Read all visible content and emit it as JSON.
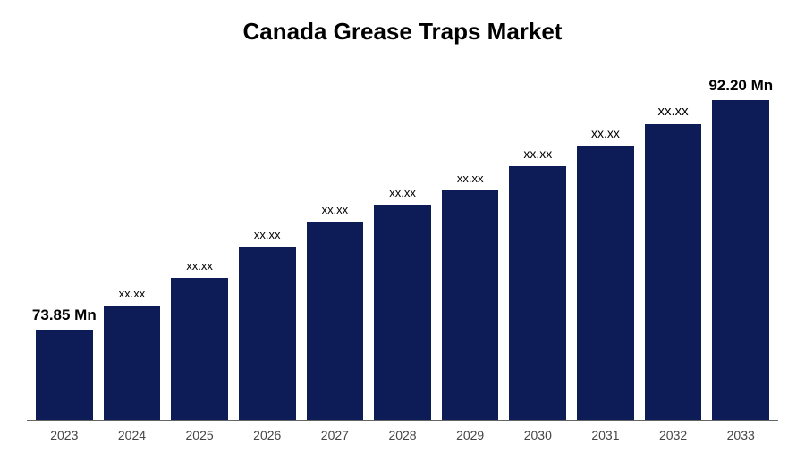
{
  "chart": {
    "type": "bar",
    "title": "Canada Grease Traps Market",
    "title_fontsize": 26,
    "title_fontweight": 700,
    "title_color": "#000000",
    "background_color": "#ffffff",
    "bar_color": "#0d1c56",
    "axis_color": "#666666",
    "x_tick_color": "#444444",
    "x_tick_fontsize": 14,
    "categories": [
      "2023",
      "2024",
      "2025",
      "2026",
      "2027",
      "2028",
      "2029",
      "2030",
      "2031",
      "2032",
      "2033"
    ],
    "values_relative_height_pct": [
      26,
      33,
      41,
      50,
      57,
      62,
      66,
      73,
      79,
      85,
      92
    ],
    "bar_labels": [
      "73.85 Mn",
      "xx.xx",
      "xx.xx",
      "xx.xx",
      "xx.xx",
      "xx.xx",
      "xx.xx",
      "xx.xx",
      "xx.xx",
      "xx.xx",
      "92.20 Mn"
    ],
    "bar_label_fontsizes": [
      17,
      13,
      13,
      13,
      13,
      13,
      13,
      14,
      14,
      15,
      17
    ],
    "bar_label_fontweights": [
      "700",
      "400",
      "400",
      "400",
      "400",
      "400",
      "400",
      "400",
      "400",
      "400",
      "700"
    ],
    "bar_label_color": "#000000",
    "bar_width_ratio": 1.0
  }
}
